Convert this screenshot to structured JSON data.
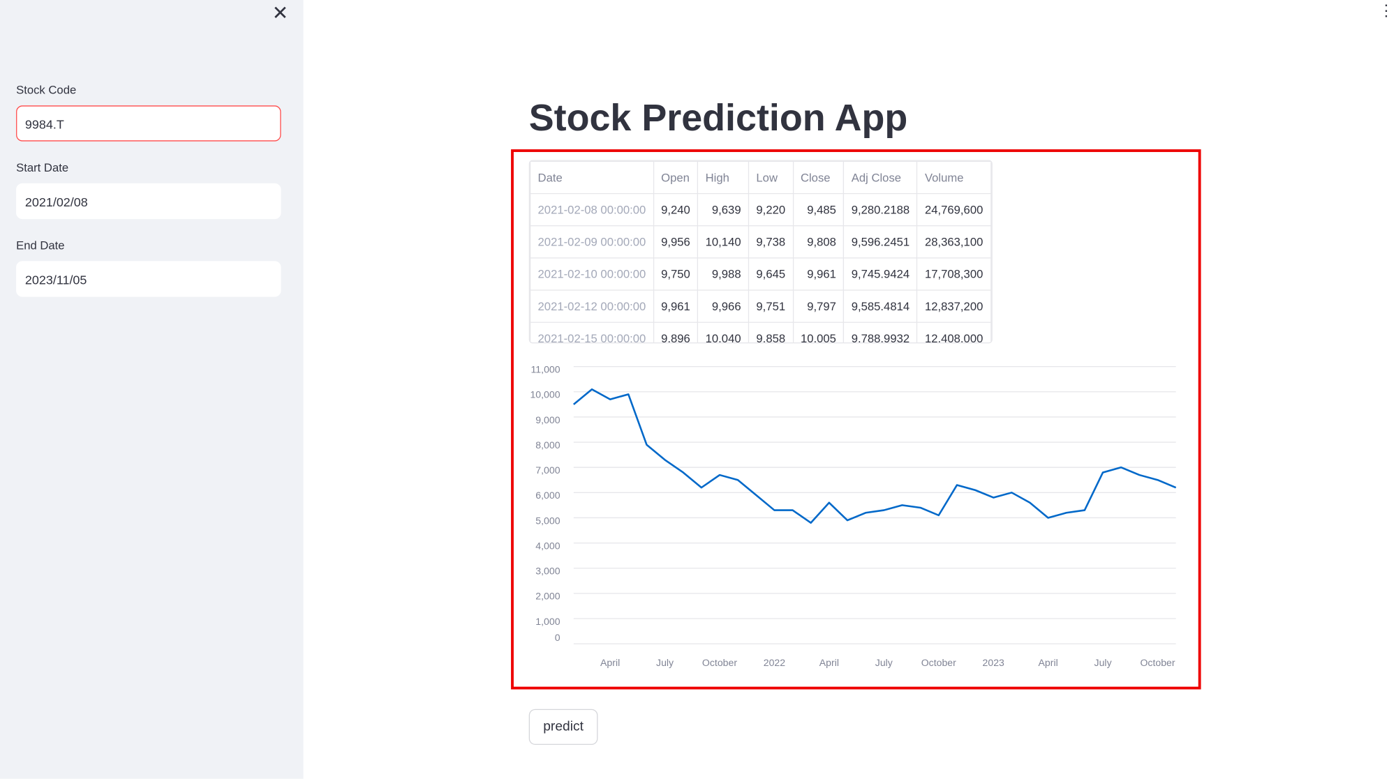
{
  "sidebar": {
    "fields": [
      {
        "label": "Stock Code",
        "value": "9984.T"
      },
      {
        "label": "Start Date",
        "value": "2021/02/08"
      },
      {
        "label": "End Date",
        "value": "2023/11/05"
      }
    ]
  },
  "header": {
    "title": "Stock Prediction App"
  },
  "table": {
    "columns": [
      "Date",
      "Open",
      "High",
      "Low",
      "Close",
      "Adj Close",
      "Volume"
    ],
    "rows": [
      [
        "2021-02-08 00:00:00",
        "9,240",
        "9,639",
        "9,220",
        "9,485",
        "9,280.2188",
        "24,769,600"
      ],
      [
        "2021-02-09 00:00:00",
        "9,956",
        "10,140",
        "9,738",
        "9,808",
        "9,596.2451",
        "28,363,100"
      ],
      [
        "2021-02-10 00:00:00",
        "9,750",
        "9,988",
        "9,645",
        "9,961",
        "9,745.9424",
        "17,708,300"
      ],
      [
        "2021-02-12 00:00:00",
        "9,961",
        "9,966",
        "9,751",
        "9,797",
        "9,585.4814",
        "12,837,200"
      ],
      [
        "2021-02-15 00:00:00",
        "9,896",
        "10,040",
        "9,858",
        "10,005",
        "9,788.9932",
        "12,408,000"
      ]
    ]
  },
  "chart_data": {
    "type": "line",
    "x": [
      "2021-02",
      "2021-03",
      "2021-04",
      "2021-05",
      "2021-06",
      "2021-07",
      "2021-08",
      "2021-09",
      "2021-10",
      "2021-11",
      "2021-12",
      "2022-01",
      "2022-02",
      "2022-03",
      "2022-04",
      "2022-05",
      "2022-06",
      "2022-07",
      "2022-08",
      "2022-09",
      "2022-10",
      "2022-11",
      "2022-12",
      "2023-01",
      "2023-02",
      "2023-03",
      "2023-04",
      "2023-05",
      "2023-06",
      "2023-07",
      "2023-08",
      "2023-09",
      "2023-10",
      "2023-11"
    ],
    "values": [
      9500,
      10100,
      9700,
      9900,
      7900,
      7300,
      6800,
      6200,
      6700,
      6500,
      5900,
      5300,
      5300,
      4800,
      5600,
      4900,
      5200,
      5300,
      5500,
      5400,
      5100,
      6300,
      6100,
      5800,
      6000,
      5600,
      5000,
      5200,
      5300,
      6800,
      7000,
      6700,
      6500,
      6200
    ],
    "color": "#0068c9",
    "ylim": [
      0,
      11000
    ],
    "yticks": [
      0,
      {
        "value": 1000,
        "label": "1,000"
      },
      {
        "value": 2000,
        "label": "2,000"
      },
      {
        "value": 3000,
        "label": "3,000"
      },
      {
        "value": 4000,
        "label": "4,000"
      },
      {
        "value": 5000,
        "label": "5,000"
      },
      {
        "value": 6000,
        "label": "6,000"
      },
      {
        "value": 7000,
        "label": "7,000"
      },
      {
        "value": 8000,
        "label": "8,000"
      },
      {
        "value": 9000,
        "label": "9,000"
      },
      {
        "value": 10000,
        "label": "10,000"
      },
      {
        "value": 11000,
        "label": "11,000"
      }
    ],
    "xticks": [
      {
        "value": "2021-04",
        "label": "April"
      },
      {
        "value": "2021-07",
        "label": "July"
      },
      {
        "value": "2021-10",
        "label": "October"
      },
      {
        "value": "2022-01",
        "label": "2022"
      },
      {
        "value": "2022-04",
        "label": "April"
      },
      {
        "value": "2022-07",
        "label": "July"
      },
      {
        "value": "2022-10",
        "label": "October"
      },
      {
        "value": "2023-01",
        "label": "2023"
      },
      {
        "value": "2023-04",
        "label": "April"
      },
      {
        "value": "2023-07",
        "label": "July"
      },
      {
        "value": "2023-10",
        "label": "October"
      }
    ],
    "grid": true
  },
  "button": {
    "label": "predict"
  }
}
